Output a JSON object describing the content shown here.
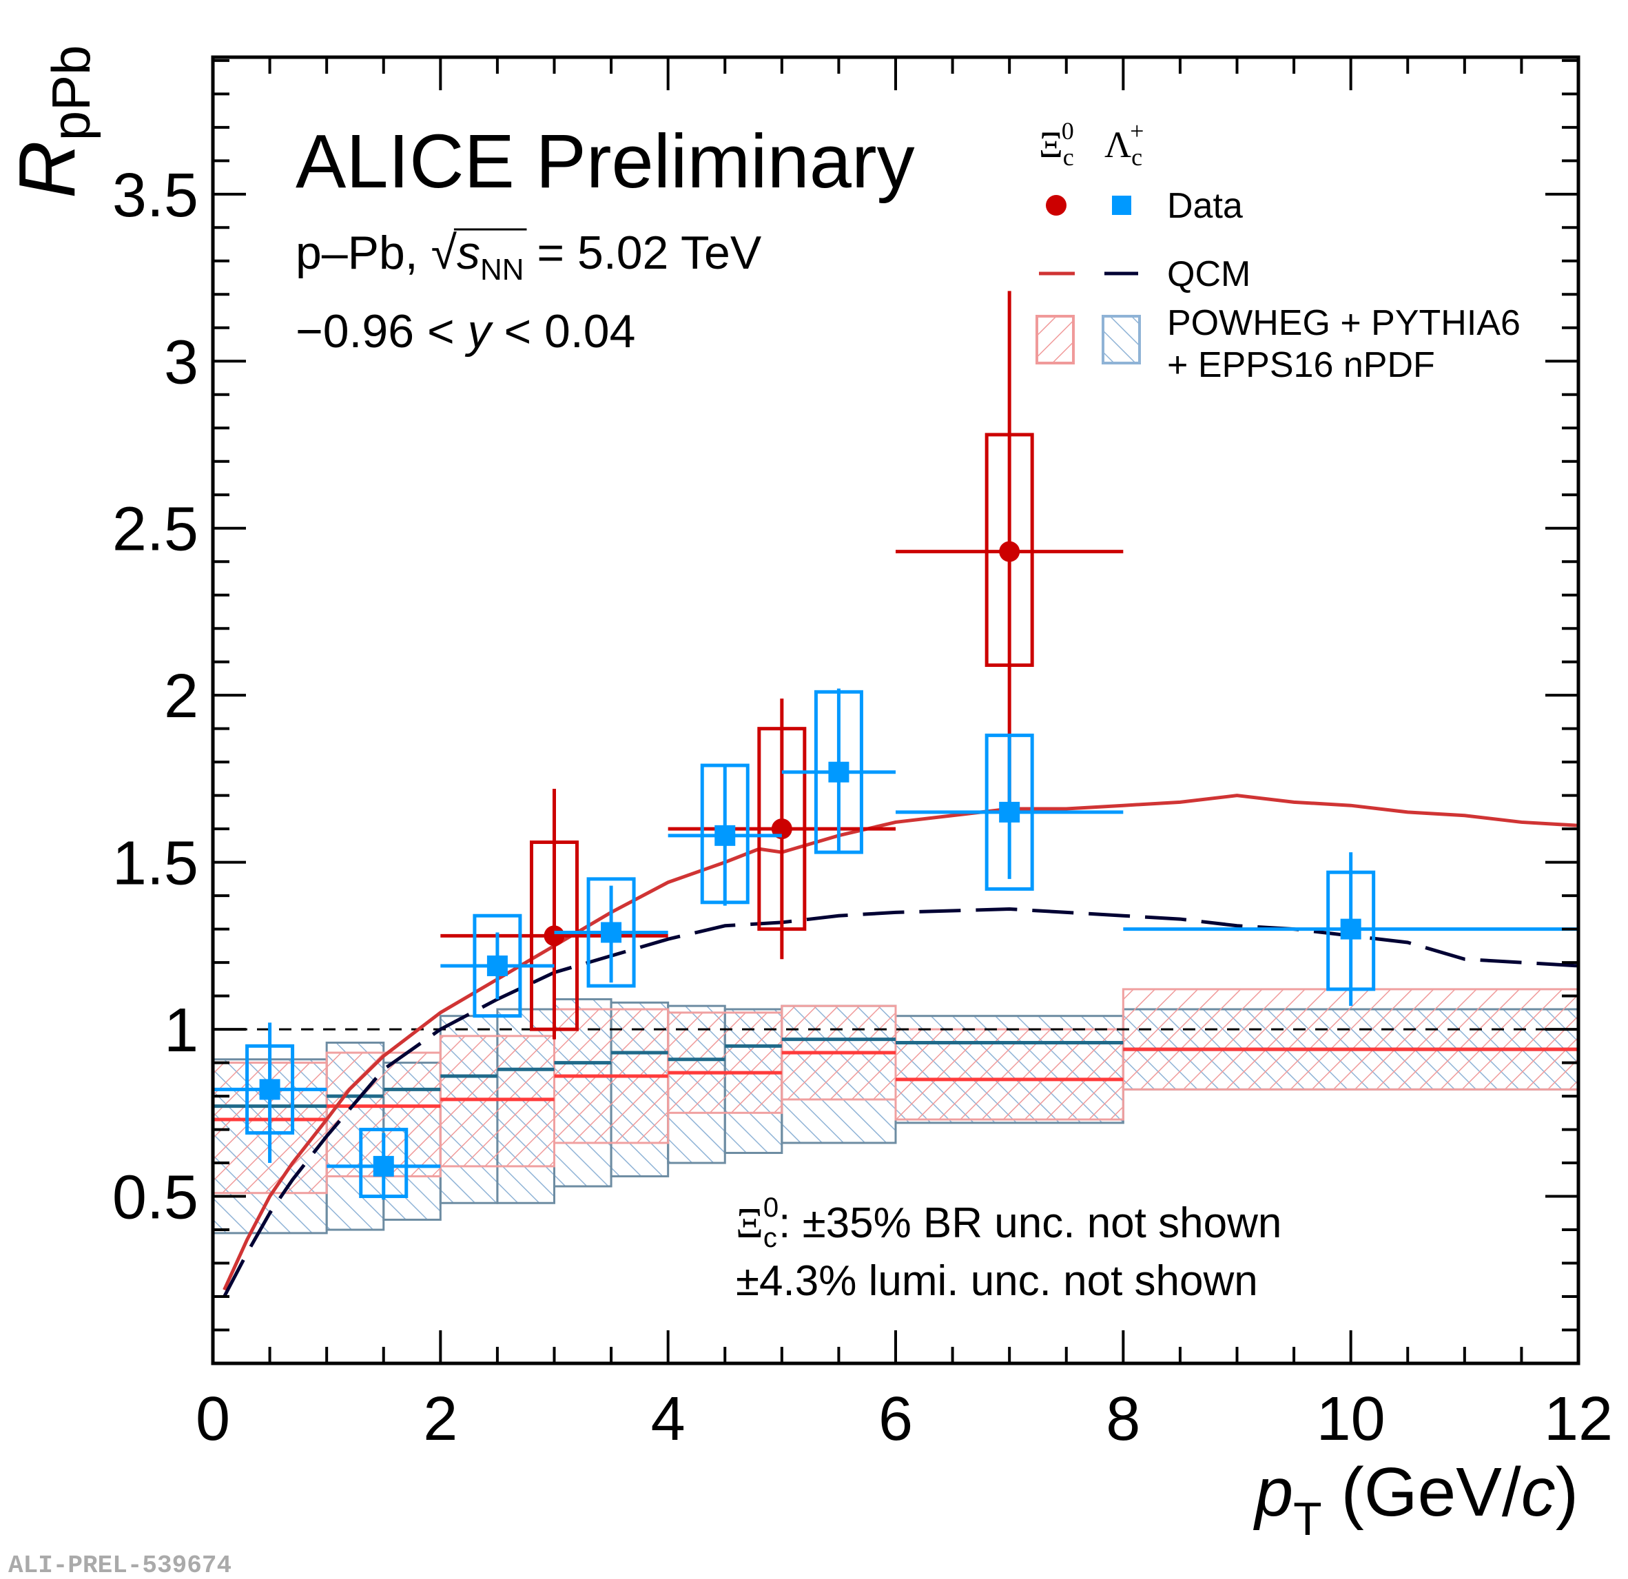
{
  "chart_data": {
    "type": "errorbar",
    "title": "ALICE Preliminary",
    "subtitle": {
      "system": "p–Pb, ",
      "root": "√",
      "var": "s",
      "sub": "NN",
      "rest": " = 5.02 TeV"
    },
    "rapidity": {
      "pre": "−0.96 < ",
      "var": "y",
      "post": " < 0.04"
    },
    "y_label": {
      "main": "R",
      "sub": "pPb"
    },
    "x_label": {
      "main": "p",
      "sub": "T",
      "unit_pre": " (GeV/",
      "unit_var": "c",
      "unit_post": ")"
    },
    "legend_header": [
      {
        "symbol": "Ξ",
        "sub": "c",
        "sup": "0"
      },
      {
        "symbol": "Λ",
        "sub": "c",
        "sup": "+"
      }
    ],
    "legend_labels": [
      "Data",
      "QCM",
      "POWHEG + PYTHIA6",
      "+ EPPS16 nPDF"
    ],
    "notes": [
      {
        "symbol": "Ξ",
        "sub": "c",
        "sup": "0",
        "text": ": ±35% BR unc. not shown"
      },
      {
        "text": "±4.3% lumi. unc. not shown"
      }
    ],
    "watermark": "ALI-PREL-539674",
    "xlim": [
      0,
      12
    ],
    "ylim": [
      0,
      3.91
    ],
    "xticks": [
      0,
      2,
      4,
      6,
      8,
      10,
      12
    ],
    "yticks": [
      0.5,
      1,
      1.5,
      2,
      2.5,
      3,
      3.5
    ],
    "xminor": [
      0.5,
      1,
      1.5,
      2.5,
      3,
      3.5,
      4.5,
      5,
      5.5,
      6.5,
      7,
      7.5,
      8.5,
      9,
      9.5,
      10.5,
      11,
      11.5
    ],
    "yminor": [
      0.1,
      0.2,
      0.3,
      0.4,
      0.6,
      0.7,
      0.8,
      0.9,
      1.1,
      1.2,
      1.3,
      1.4,
      1.6,
      1.7,
      1.8,
      1.9,
      2.1,
      2.2,
      2.3,
      2.4,
      2.6,
      2.7,
      2.8,
      2.9,
      3.1,
      3.2,
      3.3,
      3.4,
      3.6,
      3.7,
      3.8,
      3.9
    ],
    "reference_line": 1,
    "models": [
      {
        "line_color": "#1f6a8a",
        "hatch_color": "#8fb3d6",
        "edge_color": "#6d8ca2",
        "pattern": "hatch-blue",
        "bins": [
          0,
          1,
          1.5,
          2,
          2.5,
          3,
          3.5,
          4,
          4.5,
          5,
          6,
          8,
          12
        ],
        "values": [
          0.77,
          0.8,
          0.82,
          0.86,
          0.88,
          0.9,
          0.93,
          0.91,
          0.95,
          0.97,
          0.96,
          0.94
        ],
        "low": [
          0.39,
          0.4,
          0.43,
          0.48,
          0.48,
          0.53,
          0.56,
          0.6,
          0.63,
          0.66,
          0.72,
          0.82
        ],
        "high": [
          0.91,
          0.96,
          0.9,
          1.04,
          1.06,
          1.09,
          1.08,
          1.07,
          1.06,
          1.07,
          1.04,
          1.06
        ]
      },
      {
        "line_color": "#ff3b3b",
        "hatch_color": "#f09a9a",
        "edge_color": "#f0a0a0",
        "pattern": "hatch-red",
        "bins": [
          0,
          1,
          2,
          3,
          4,
          5,
          6,
          8,
          12
        ],
        "values": [
          0.73,
          0.77,
          0.79,
          0.86,
          0.87,
          0.93,
          0.85,
          0.94
        ],
        "low": [
          0.51,
          0.56,
          0.59,
          0.66,
          0.75,
          0.79,
          0.73,
          0.82
        ],
        "high": [
          0.9,
          0.93,
          0.98,
          1.06,
          1.05,
          1.07,
          1.0,
          1.12
        ]
      }
    ],
    "curves": [
      {
        "color": "#d03434",
        "dash": false,
        "x": [
          0.1,
          0.3,
          0.5,
          0.7,
          1,
          1.2,
          1.5,
          2,
          2.5,
          3,
          3.5,
          4,
          4.5,
          4.8,
          5,
          5.5,
          6,
          6.5,
          7,
          7.5,
          8,
          8.5,
          9,
          9.5,
          10,
          10.5,
          11,
          11.5,
          12
        ],
        "values": [
          0.22,
          0.37,
          0.5,
          0.6,
          0.73,
          0.82,
          0.92,
          1.05,
          1.15,
          1.25,
          1.35,
          1.44,
          1.5,
          1.54,
          1.53,
          1.58,
          1.62,
          1.64,
          1.66,
          1.66,
          1.67,
          1.68,
          1.7,
          1.68,
          1.67,
          1.65,
          1.64,
          1.62,
          1.61
        ]
      },
      {
        "color": "#000033",
        "dash": true,
        "x": [
          0.1,
          0.3,
          0.5,
          0.7,
          1,
          1.5,
          2,
          2.5,
          3,
          3.5,
          4,
          4.5,
          5,
          5.5,
          6,
          7,
          7.5,
          8,
          8.5,
          9,
          9.5,
          10,
          10.5,
          11,
          11.5,
          12
        ],
        "values": [
          0.2,
          0.33,
          0.45,
          0.55,
          0.68,
          0.88,
          1.0,
          1.09,
          1.17,
          1.22,
          1.27,
          1.31,
          1.32,
          1.34,
          1.35,
          1.36,
          1.35,
          1.34,
          1.33,
          1.31,
          1.3,
          1.28,
          1.26,
          1.21,
          1.2,
          1.19
        ]
      }
    ],
    "series": [
      {
        "color": "#cc0000",
        "marker": "circle",
        "x": [
          3,
          5,
          7
        ],
        "values": [
          1.28,
          1.6,
          2.43
        ],
        "xerr_low": [
          2,
          4,
          6
        ],
        "xerr_high": [
          4,
          6,
          8
        ],
        "stat_low": [
          0.97,
          1.21,
          1.65
        ],
        "stat_high": [
          1.72,
          1.99,
          3.21
        ],
        "sys_low": [
          1.0,
          1.3,
          2.09
        ],
        "sys_high": [
          1.56,
          1.9,
          2.78
        ]
      },
      {
        "color": "#0099ff",
        "marker": "square",
        "x": [
          0.5,
          1.5,
          2.5,
          3.5,
          4.5,
          5.5,
          7,
          10
        ],
        "values": [
          0.82,
          0.59,
          1.19,
          1.29,
          1.58,
          1.77,
          1.65,
          1.3
        ],
        "xerr_low": [
          0,
          1,
          2,
          3,
          4,
          5,
          6,
          8
        ],
        "xerr_high": [
          1,
          2,
          3,
          4,
          5,
          6,
          8,
          12
        ],
        "stat_low": [
          0.6,
          0.49,
          1.09,
          1.14,
          1.37,
          1.53,
          1.45,
          1.07
        ],
        "stat_high": [
          1.02,
          0.69,
          1.29,
          1.43,
          1.79,
          2.02,
          1.88,
          1.53
        ],
        "sys_low": [
          0.69,
          0.5,
          1.04,
          1.13,
          1.38,
          1.53,
          1.42,
          1.12
        ],
        "sys_high": [
          0.95,
          0.7,
          1.34,
          1.45,
          1.79,
          2.01,
          1.88,
          1.47
        ]
      }
    ]
  }
}
